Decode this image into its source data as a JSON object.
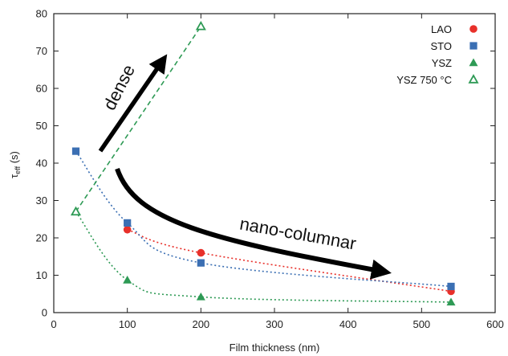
{
  "chart_data": {
    "type": "line",
    "title": "",
    "xlabel": "Film thickness (nm)",
    "ylabel_main": "τ",
    "ylabel_sub": "eff",
    "ylabel_unit": " (s)",
    "xlim": [
      0,
      600
    ],
    "ylim": [
      0,
      80
    ],
    "xticks": [
      0,
      100,
      200,
      300,
      400,
      500,
      600
    ],
    "yticks": [
      0,
      10,
      20,
      30,
      40,
      50,
      60,
      70,
      80
    ],
    "grid": false,
    "legend_position": "top-right",
    "series": [
      {
        "name": "LAO",
        "color": "#e8302a",
        "marker": "circle",
        "line": "dotted",
        "x": [
          100,
          200,
          540
        ],
        "y": [
          22.2,
          16.0,
          5.7
        ]
      },
      {
        "name": "STO",
        "color": "#3b6fb3",
        "marker": "square",
        "line": "dotted",
        "x": [
          30,
          100,
          200,
          540
        ],
        "y": [
          43.2,
          24.0,
          13.3,
          7.0
        ]
      },
      {
        "name": "YSZ",
        "color": "#2e9a55",
        "marker": "triangle",
        "line": "dotted",
        "x": [
          30,
          100,
          200,
          540
        ],
        "y": [
          27.0,
          8.7,
          4.2,
          2.8
        ]
      },
      {
        "name": "YSZ 750 °C",
        "color": "#2e9a55",
        "marker": "triangle-open",
        "line": "dashed",
        "x": [
          30,
          200
        ],
        "y": [
          27.0,
          76.6
        ]
      }
    ],
    "annotations": [
      {
        "text": "dense",
        "arrow": "straight"
      },
      {
        "text": "nano-columnar",
        "arrow": "curved"
      }
    ]
  }
}
